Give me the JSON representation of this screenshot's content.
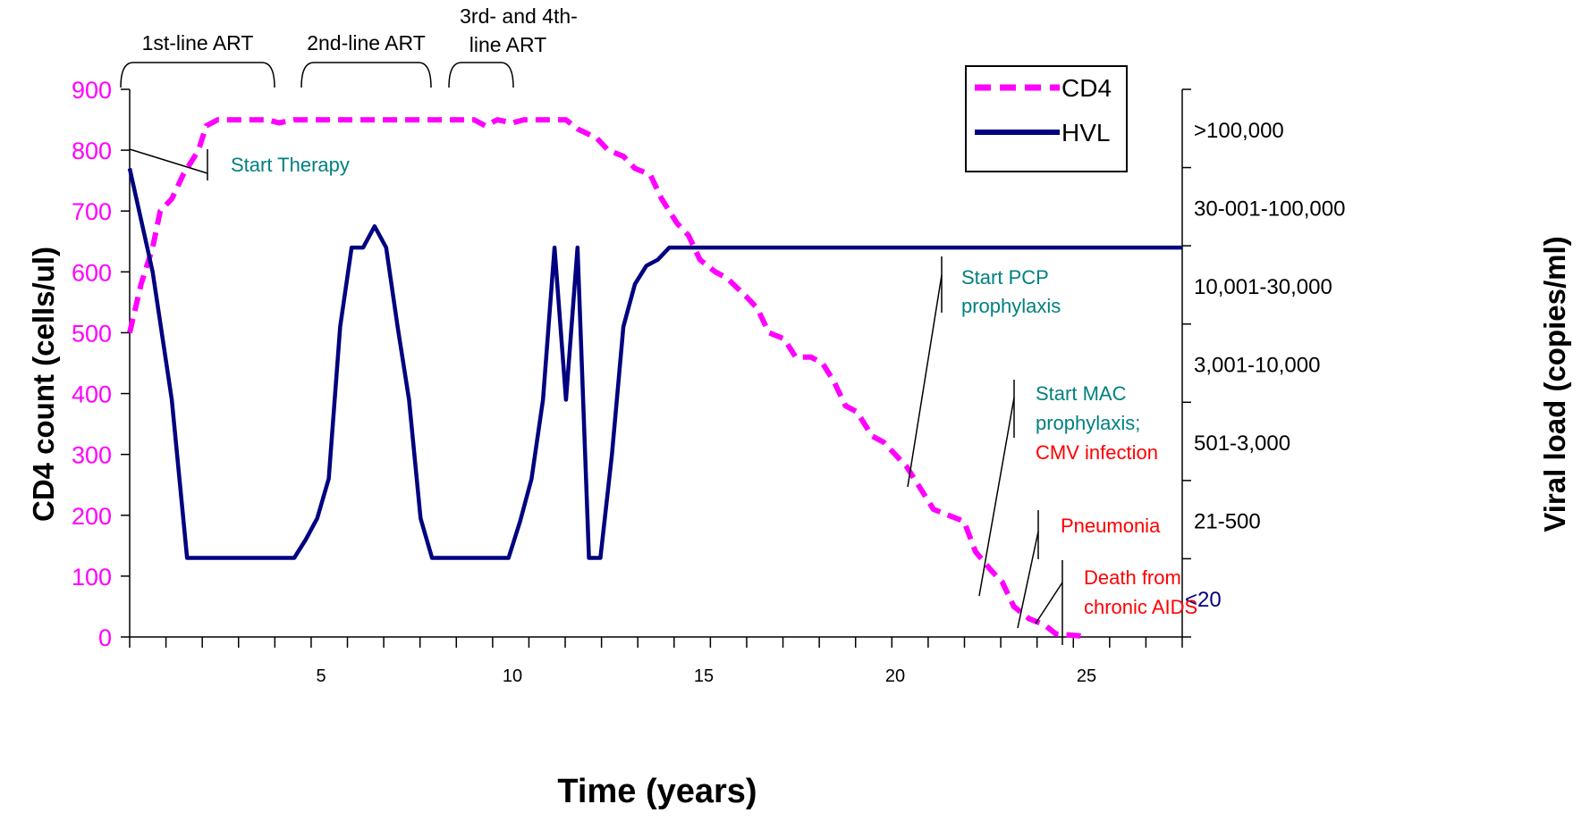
{
  "chart_data": {
    "type": "line",
    "xlabel": "Time (years)",
    "ylabel_left": "CD4 count (cells/ul)",
    "ylabel_right": "Viral load (copies/ml)",
    "xlim": [
      0,
      27.5
    ],
    "ylim": [
      0,
      900
    ],
    "x_ticks": [
      5,
      10,
      15,
      20,
      25
    ],
    "y_ticks": [
      0,
      100,
      200,
      300,
      400,
      500,
      600,
      700,
      800,
      900
    ],
    "right_axis_labels": [
      ">100,000",
      "30-001-100,000",
      "10,001-30,000",
      "3,001-10,000",
      "501-3,000",
      "21-500",
      "<20"
    ],
    "legend": [
      {
        "name": "CD4",
        "color": "#ff00ff",
        "style": "dashed"
      },
      {
        "name": "HVL",
        "color": "#000080",
        "style": "solid"
      }
    ],
    "series": [
      {
        "name": "CD4",
        "color": "#ff00ff",
        "points": [
          [
            0,
            500
          ],
          [
            0.3,
            580
          ],
          [
            0.6,
            640
          ],
          [
            0.8,
            700
          ],
          [
            1.1,
            720
          ],
          [
            1.4,
            760
          ],
          [
            1.8,
            800
          ],
          [
            2.0,
            840
          ],
          [
            2.3,
            850
          ],
          [
            3.0,
            850
          ],
          [
            3.6,
            850
          ],
          [
            3.9,
            845
          ],
          [
            4.3,
            850
          ],
          [
            5.0,
            850
          ],
          [
            6.0,
            850
          ],
          [
            7.0,
            850
          ],
          [
            8.0,
            850
          ],
          [
            8.7,
            850
          ],
          [
            9.0,
            850
          ],
          [
            9.3,
            840
          ],
          [
            9.6,
            850
          ],
          [
            10.0,
            845
          ],
          [
            10.3,
            850
          ],
          [
            11.0,
            850
          ],
          [
            11.4,
            850
          ],
          [
            11.7,
            835
          ],
          [
            12.2,
            820
          ],
          [
            12.5,
            800
          ],
          [
            12.9,
            790
          ],
          [
            13.2,
            770
          ],
          [
            13.6,
            760
          ],
          [
            13.9,
            720
          ],
          [
            14.3,
            680
          ],
          [
            14.6,
            660
          ],
          [
            14.9,
            620
          ],
          [
            15.3,
            600
          ],
          [
            15.6,
            590
          ],
          [
            16.1,
            560
          ],
          [
            16.4,
            540
          ],
          [
            16.7,
            500
          ],
          [
            17.1,
            490
          ],
          [
            17.4,
            460
          ],
          [
            17.8,
            460
          ],
          [
            18.1,
            450
          ],
          [
            18.4,
            420
          ],
          [
            18.7,
            380
          ],
          [
            19.0,
            370
          ],
          [
            19.4,
            330
          ],
          [
            19.7,
            320
          ],
          [
            20.0,
            300
          ],
          [
            20.3,
            280
          ],
          [
            20.6,
            250
          ],
          [
            21.0,
            210
          ],
          [
            21.4,
            200
          ],
          [
            21.8,
            190
          ],
          [
            22.1,
            140
          ],
          [
            22.5,
            110
          ],
          [
            22.8,
            90
          ],
          [
            23.1,
            50
          ],
          [
            23.5,
            30
          ],
          [
            23.9,
            20
          ],
          [
            24.2,
            5
          ],
          [
            24.8,
            2
          ],
          [
            25.0,
            0
          ]
        ]
      },
      {
        "name": "HVL",
        "color": "#000080",
        "points": [
          [
            0,
            770
          ],
          [
            0.6,
            600
          ],
          [
            1.1,
            390
          ],
          [
            1.5,
            130
          ],
          [
            2.0,
            130
          ],
          [
            3.0,
            130
          ],
          [
            4.0,
            130
          ],
          [
            4.3,
            130
          ],
          [
            4.6,
            160
          ],
          [
            4.9,
            195
          ],
          [
            5.2,
            260
          ],
          [
            5.5,
            510
          ],
          [
            5.8,
            640
          ],
          [
            6.1,
            640
          ],
          [
            6.4,
            675
          ],
          [
            6.7,
            640
          ],
          [
            7.0,
            510
          ],
          [
            7.3,
            390
          ],
          [
            7.6,
            195
          ],
          [
            7.9,
            130
          ],
          [
            8.4,
            130
          ],
          [
            9.5,
            130
          ],
          [
            9.9,
            130
          ],
          [
            10.2,
            190
          ],
          [
            10.5,
            260
          ],
          [
            10.8,
            390
          ],
          [
            11.1,
            640
          ],
          [
            11.4,
            390
          ],
          [
            11.7,
            640
          ],
          [
            12.0,
            130
          ],
          [
            12.3,
            130
          ],
          [
            12.6,
            300
          ],
          [
            12.9,
            510
          ],
          [
            13.2,
            580
          ],
          [
            13.5,
            610
          ],
          [
            13.8,
            620
          ],
          [
            14.1,
            640
          ],
          [
            14.3,
            640
          ],
          [
            15.0,
            640
          ],
          [
            20.0,
            640
          ],
          [
            25.0,
            640
          ],
          [
            27.5,
            640
          ]
        ]
      }
    ],
    "brackets": [
      {
        "label": "1st-line ART",
        "x0": 0,
        "x1": 4.5
      },
      {
        "label": "2nd-line ART",
        "x0": 5.3,
        "x1": 8.6
      },
      {
        "label_lines": [
          "3rd- and 4th-",
          "line ART"
        ],
        "x0": 9.0,
        "x1": 10.5
      }
    ],
    "annotations": [
      {
        "lines": [
          {
            "text": "Start Therapy",
            "color": "#008080"
          }
        ]
      },
      {
        "lines": [
          {
            "text": "Start PCP",
            "color": "#008080"
          },
          {
            "text": "prophylaxis",
            "color": "#008080"
          }
        ]
      },
      {
        "lines": [
          {
            "text": "Start MAC",
            "color": "#008080"
          },
          {
            "text": "prophylaxis;",
            "color": "#008080"
          },
          {
            "text": "CMV infection",
            "color": "#ff0000"
          }
        ]
      },
      {
        "lines": [
          {
            "text": "Pneumonia",
            "color": "#ff0000"
          }
        ]
      },
      {
        "lines": [
          {
            "text": "Death from",
            "color": "#ff0000"
          },
          {
            "text": "chronic AIDS",
            "color": "#ff0000"
          }
        ]
      }
    ]
  }
}
